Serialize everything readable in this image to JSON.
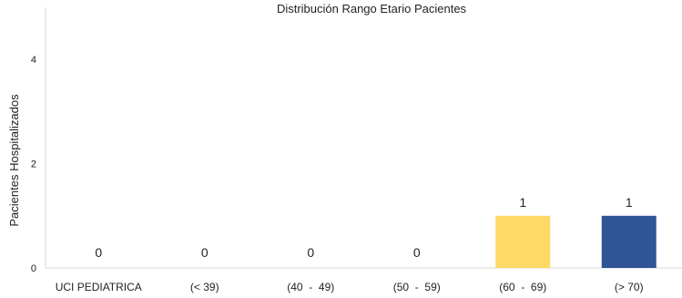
{
  "chart_data": {
    "type": "bar",
    "title": "Distribución Rango Etario Pacientes",
    "xlabel": "",
    "ylabel": "Pacientes Hospitalizados",
    "categories": [
      "UCI PEDIATRICA",
      "(< 39)",
      "(40  -  49)",
      "(50  -  59)",
      "(60  -  69)",
      "(> 70)"
    ],
    "series": [
      {
        "values": [
          0,
          0,
          0,
          0,
          1,
          1
        ]
      }
    ],
    "data_labels": [
      "0",
      "0",
      "0",
      "0",
      "1",
      "1"
    ],
    "bar_colors": [
      "#ffffff",
      "#ffffff",
      "#ffffff",
      "#ffffff",
      "#FFD966",
      "#2F5597"
    ],
    "ylim": [
      0,
      5
    ],
    "yticks": [
      0,
      2,
      4
    ],
    "grid": false,
    "legend": "none"
  }
}
